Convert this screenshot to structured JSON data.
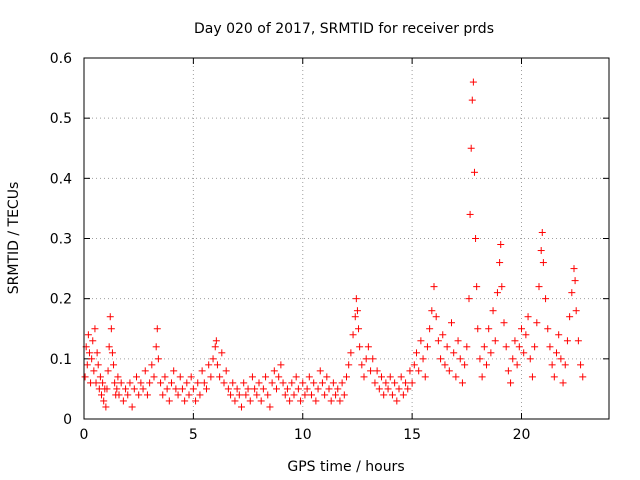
{
  "chart_data": {
    "type": "scatter",
    "title": "Day 020 of 2017, SRMTID for receiver prds",
    "xlabel": "GPS time / hours",
    "ylabel": "SRMTID / TECUs",
    "xlim": [
      0,
      24
    ],
    "ylim": [
      0,
      0.6
    ],
    "xticks": [
      0,
      5,
      10,
      15,
      20
    ],
    "yticks": [
      0,
      0.1,
      0.2,
      0.3,
      0.4,
      0.5,
      0.6
    ],
    "xtick_labels": [
      "0",
      "5",
      "10",
      "15",
      "20"
    ],
    "ytick_labels": [
      "0",
      "0.1",
      "0.2",
      "0.3",
      "0.4",
      "0.5",
      "0.6"
    ],
    "grid": true,
    "marker": "+",
    "color": "#ff0000",
    "series": [
      {
        "name": "SRMTID",
        "points": [
          [
            0.05,
            0.07
          ],
          [
            0.1,
            0.12
          ],
          [
            0.15,
            0.09
          ],
          [
            0.2,
            0.14
          ],
          [
            0.25,
            0.11
          ],
          [
            0.3,
            0.06
          ],
          [
            0.35,
            0.1
          ],
          [
            0.4,
            0.13
          ],
          [
            0.45,
            0.08
          ],
          [
            0.5,
            0.15
          ],
          [
            0.55,
            0.06
          ],
          [
            0.6,
            0.11
          ],
          [
            0.65,
            0.09
          ],
          [
            0.7,
            0.05
          ],
          [
            0.75,
            0.07
          ],
          [
            0.8,
            0.04
          ],
          [
            0.85,
            0.06
          ],
          [
            0.9,
            0.03
          ],
          [
            0.95,
            0.05
          ],
          [
            1.0,
            0.02
          ],
          [
            1.05,
            0.05
          ],
          [
            1.1,
            0.08
          ],
          [
            1.15,
            0.12
          ],
          [
            1.2,
            0.17
          ],
          [
            1.25,
            0.15
          ],
          [
            1.3,
            0.11
          ],
          [
            1.35,
            0.09
          ],
          [
            1.4,
            0.06
          ],
          [
            1.45,
            0.04
          ],
          [
            1.5,
            0.05
          ],
          [
            1.55,
            0.07
          ],
          [
            1.6,
            0.04
          ],
          [
            1.7,
            0.06
          ],
          [
            1.8,
            0.03
          ],
          [
            1.9,
            0.05
          ],
          [
            2.0,
            0.04
          ],
          [
            2.1,
            0.06
          ],
          [
            2.2,
            0.02
          ],
          [
            2.3,
            0.05
          ],
          [
            2.4,
            0.07
          ],
          [
            2.5,
            0.04
          ],
          [
            2.6,
            0.06
          ],
          [
            2.7,
            0.05
          ],
          [
            2.8,
            0.08
          ],
          [
            2.9,
            0.04
          ],
          [
            3.0,
            0.06
          ],
          [
            3.1,
            0.09
          ],
          [
            3.2,
            0.07
          ],
          [
            3.3,
            0.12
          ],
          [
            3.35,
            0.15
          ],
          [
            3.4,
            0.1
          ],
          [
            3.5,
            0.06
          ],
          [
            3.6,
            0.04
          ],
          [
            3.7,
            0.07
          ],
          [
            3.8,
            0.05
          ],
          [
            3.9,
            0.03
          ],
          [
            4.0,
            0.06
          ],
          [
            4.1,
            0.08
          ],
          [
            4.2,
            0.05
          ],
          [
            4.3,
            0.04
          ],
          [
            4.4,
            0.07
          ],
          [
            4.5,
            0.05
          ],
          [
            4.6,
            0.03
          ],
          [
            4.7,
            0.06
          ],
          [
            4.8,
            0.04
          ],
          [
            4.9,
            0.07
          ],
          [
            5.0,
            0.05
          ],
          [
            5.1,
            0.03
          ],
          [
            5.2,
            0.06
          ],
          [
            5.3,
            0.04
          ],
          [
            5.4,
            0.08
          ],
          [
            5.5,
            0.06
          ],
          [
            5.6,
            0.05
          ],
          [
            5.7,
            0.09
          ],
          [
            5.8,
            0.07
          ],
          [
            5.9,
            0.1
          ],
          [
            6.0,
            0.12
          ],
          [
            6.05,
            0.13
          ],
          [
            6.1,
            0.09
          ],
          [
            6.2,
            0.07
          ],
          [
            6.3,
            0.11
          ],
          [
            6.4,
            0.06
          ],
          [
            6.5,
            0.08
          ],
          [
            6.6,
            0.05
          ],
          [
            6.7,
            0.04
          ],
          [
            6.8,
            0.06
          ],
          [
            6.9,
            0.03
          ],
          [
            7.0,
            0.05
          ],
          [
            7.1,
            0.04
          ],
          [
            7.2,
            0.02
          ],
          [
            7.3,
            0.06
          ],
          [
            7.4,
            0.04
          ],
          [
            7.5,
            0.05
          ],
          [
            7.6,
            0.03
          ],
          [
            7.7,
            0.07
          ],
          [
            7.8,
            0.05
          ],
          [
            7.9,
            0.04
          ],
          [
            8.0,
            0.06
          ],
          [
            8.1,
            0.03
          ],
          [
            8.2,
            0.05
          ],
          [
            8.3,
            0.07
          ],
          [
            8.4,
            0.04
          ],
          [
            8.5,
            0.02
          ],
          [
            8.6,
            0.06
          ],
          [
            8.7,
            0.08
          ],
          [
            8.8,
            0.05
          ],
          [
            8.9,
            0.07
          ],
          [
            9.0,
            0.09
          ],
          [
            9.1,
            0.06
          ],
          [
            9.2,
            0.04
          ],
          [
            9.3,
            0.05
          ],
          [
            9.4,
            0.03
          ],
          [
            9.5,
            0.06
          ],
          [
            9.6,
            0.04
          ],
          [
            9.7,
            0.07
          ],
          [
            9.8,
            0.05
          ],
          [
            9.9,
            0.03
          ],
          [
            10.0,
            0.06
          ],
          [
            10.1,
            0.04
          ],
          [
            10.2,
            0.05
          ],
          [
            10.3,
            0.07
          ],
          [
            10.4,
            0.04
          ],
          [
            10.5,
            0.06
          ],
          [
            10.6,
            0.03
          ],
          [
            10.7,
            0.05
          ],
          [
            10.8,
            0.08
          ],
          [
            10.9,
            0.06
          ],
          [
            11.0,
            0.04
          ],
          [
            11.1,
            0.07
          ],
          [
            11.2,
            0.05
          ],
          [
            11.3,
            0.03
          ],
          [
            11.4,
            0.06
          ],
          [
            11.5,
            0.04
          ],
          [
            11.6,
            0.05
          ],
          [
            11.7,
            0.03
          ],
          [
            11.8,
            0.06
          ],
          [
            11.9,
            0.04
          ],
          [
            12.0,
            0.07
          ],
          [
            12.1,
            0.09
          ],
          [
            12.2,
            0.11
          ],
          [
            12.3,
            0.14
          ],
          [
            12.4,
            0.17
          ],
          [
            12.45,
            0.2
          ],
          [
            12.5,
            0.18
          ],
          [
            12.55,
            0.15
          ],
          [
            12.6,
            0.12
          ],
          [
            12.7,
            0.09
          ],
          [
            12.8,
            0.07
          ],
          [
            12.9,
            0.1
          ],
          [
            13.0,
            0.12
          ],
          [
            13.1,
            0.08
          ],
          [
            13.2,
            0.1
          ],
          [
            13.3,
            0.06
          ],
          [
            13.4,
            0.08
          ],
          [
            13.5,
            0.05
          ],
          [
            13.6,
            0.07
          ],
          [
            13.7,
            0.04
          ],
          [
            13.8,
            0.06
          ],
          [
            13.9,
            0.05
          ],
          [
            14.0,
            0.07
          ],
          [
            14.1,
            0.04
          ],
          [
            14.2,
            0.06
          ],
          [
            14.3,
            0.03
          ],
          [
            14.4,
            0.05
          ],
          [
            14.5,
            0.07
          ],
          [
            14.6,
            0.04
          ],
          [
            14.7,
            0.06
          ],
          [
            14.8,
            0.05
          ],
          [
            14.9,
            0.08
          ],
          [
            15.0,
            0.06
          ],
          [
            15.1,
            0.09
          ],
          [
            15.2,
            0.11
          ],
          [
            15.3,
            0.08
          ],
          [
            15.4,
            0.13
          ],
          [
            15.5,
            0.1
          ],
          [
            15.6,
            0.07
          ],
          [
            15.7,
            0.12
          ],
          [
            15.8,
            0.15
          ],
          [
            15.9,
            0.18
          ],
          [
            16.0,
            0.22
          ],
          [
            16.1,
            0.17
          ],
          [
            16.2,
            0.13
          ],
          [
            16.3,
            0.1
          ],
          [
            16.4,
            0.14
          ],
          [
            16.5,
            0.09
          ],
          [
            16.6,
            0.12
          ],
          [
            16.7,
            0.08
          ],
          [
            16.8,
            0.16
          ],
          [
            16.9,
            0.11
          ],
          [
            17.0,
            0.07
          ],
          [
            17.1,
            0.13
          ],
          [
            17.2,
            0.1
          ],
          [
            17.3,
            0.06
          ],
          [
            17.4,
            0.09
          ],
          [
            17.5,
            0.12
          ],
          [
            17.6,
            0.2
          ],
          [
            17.65,
            0.34
          ],
          [
            17.7,
            0.45
          ],
          [
            17.75,
            0.53
          ],
          [
            17.8,
            0.56
          ],
          [
            17.85,
            0.41
          ],
          [
            17.9,
            0.3
          ],
          [
            17.95,
            0.22
          ],
          [
            18.0,
            0.15
          ],
          [
            18.1,
            0.1
          ],
          [
            18.2,
            0.07
          ],
          [
            18.3,
            0.12
          ],
          [
            18.4,
            0.09
          ],
          [
            18.5,
            0.15
          ],
          [
            18.6,
            0.11
          ],
          [
            18.7,
            0.18
          ],
          [
            18.8,
            0.13
          ],
          [
            18.9,
            0.21
          ],
          [
            19.0,
            0.26
          ],
          [
            19.05,
            0.29
          ],
          [
            19.1,
            0.22
          ],
          [
            19.2,
            0.16
          ],
          [
            19.3,
            0.12
          ],
          [
            19.4,
            0.08
          ],
          [
            19.5,
            0.06
          ],
          [
            19.6,
            0.1
          ],
          [
            19.7,
            0.13
          ],
          [
            19.8,
            0.09
          ],
          [
            19.9,
            0.12
          ],
          [
            20.0,
            0.15
          ],
          [
            20.1,
            0.11
          ],
          [
            20.2,
            0.14
          ],
          [
            20.3,
            0.17
          ],
          [
            20.4,
            0.1
          ],
          [
            20.5,
            0.07
          ],
          [
            20.6,
            0.12
          ],
          [
            20.7,
            0.16
          ],
          [
            20.8,
            0.22
          ],
          [
            20.9,
            0.28
          ],
          [
            20.95,
            0.31
          ],
          [
            21.0,
            0.26
          ],
          [
            21.1,
            0.2
          ],
          [
            21.2,
            0.15
          ],
          [
            21.3,
            0.12
          ],
          [
            21.4,
            0.09
          ],
          [
            21.5,
            0.07
          ],
          [
            21.6,
            0.11
          ],
          [
            21.7,
            0.14
          ],
          [
            21.8,
            0.1
          ],
          [
            21.9,
            0.06
          ],
          [
            22.0,
            0.09
          ],
          [
            22.1,
            0.13
          ],
          [
            22.2,
            0.17
          ],
          [
            22.3,
            0.21
          ],
          [
            22.4,
            0.25
          ],
          [
            22.45,
            0.23
          ],
          [
            22.5,
            0.18
          ],
          [
            22.6,
            0.13
          ],
          [
            22.7,
            0.09
          ],
          [
            22.8,
            0.07
          ]
        ]
      }
    ]
  }
}
